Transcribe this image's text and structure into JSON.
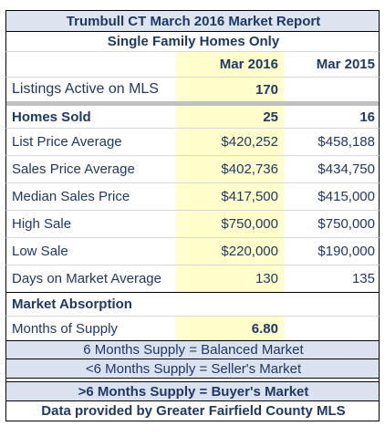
{
  "report": {
    "title": "Trumbull CT March 2016 Market Report",
    "subtitle": "Single Family Homes Only"
  },
  "headers": {
    "col_current": "Mar 2016",
    "col_prior": "Mar 2015"
  },
  "listings": {
    "label": "Listings Active on MLS",
    "current": "170",
    "prior": ""
  },
  "homes_sold": {
    "label": "Homes Sold",
    "current": "25",
    "prior": "16"
  },
  "rows": [
    {
      "label": "List Price Average",
      "current": "$420,252",
      "prior": "$458,188"
    },
    {
      "label": "Sales Price Average",
      "current": "$402,736",
      "prior": "$434,750"
    },
    {
      "label": "Median Sales Price",
      "current": "$417,500",
      "prior": "$415,000"
    },
    {
      "label": "High Sale",
      "current": "$750,000",
      "prior": "$750,000"
    },
    {
      "label": "Low Sale",
      "current": "$220,000",
      "prior": "$190,000"
    },
    {
      "label": "Days on Market Average",
      "current": "130",
      "prior": "135"
    }
  ],
  "absorption": {
    "section_label": "Market Absorption",
    "months_label": "Months of Supply",
    "months_value": "6.80"
  },
  "legend": {
    "balanced": "6 Months Supply = Balanced Market",
    "seller": "<6 Months Supply = Seller's Market",
    "buyer": ">6 Months Supply = Buyer's Market"
  },
  "footer": "Data provided by Greater Fairfield County MLS",
  "colors": {
    "title_bg": "#dde4f0",
    "highlight": "#ffffcc",
    "text": "#1f3864",
    "band": "#dbe2ef"
  }
}
